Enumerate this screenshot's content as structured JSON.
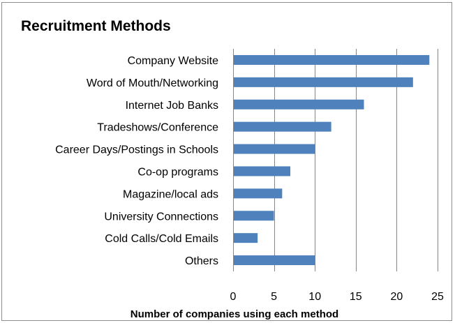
{
  "chart_data": {
    "type": "bar",
    "orientation": "horizontal",
    "title": "Recruitment Methods",
    "xlabel": "Number of companies using each method",
    "ylabel": "",
    "categories": [
      "Company Website",
      "Word of Mouth/Networking",
      "Internet Job Banks",
      "Tradeshows/Conference",
      "Career Days/Postings in Schools",
      "Co-op programs",
      "Magazine/local ads",
      "University Connections",
      "Cold Calls/Cold Emails",
      "Others"
    ],
    "values": [
      24,
      22,
      16,
      12,
      10,
      7,
      6,
      5,
      3,
      10
    ],
    "xlim": [
      0,
      25
    ],
    "xticks": [
      0,
      5,
      10,
      15,
      20,
      25
    ],
    "grid": "vertical",
    "legend": "none",
    "bar_color": "#4f81bd",
    "grid_color": "#868686"
  }
}
